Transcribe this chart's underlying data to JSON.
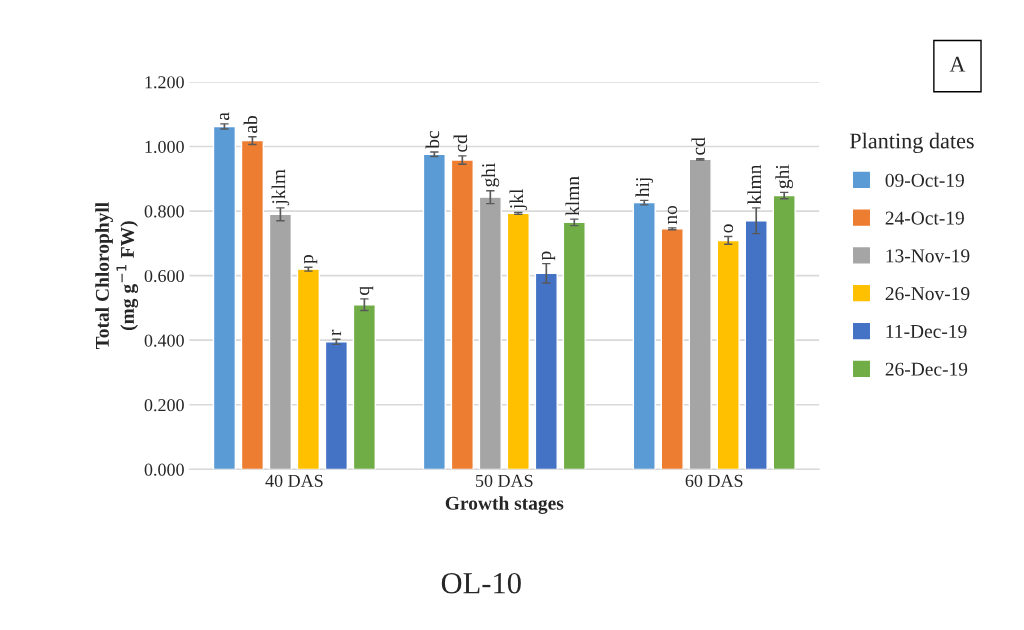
{
  "chart_data": {
    "type": "bar",
    "xlabel": "Growth stages",
    "ylabel": "Total Chlorophyll\n(mg g$^{−1}$ FW)",
    "legend_title": "Planting dates",
    "categories": [
      "40 DAS",
      "50 DAS",
      "60 DAS"
    ],
    "series": [
      {
        "name": "09-Oct-19",
        "color": "#5b9bd5",
        "values": [
          1.062,
          0.976,
          0.826
        ],
        "errors": [
          0.008,
          0.007,
          0.007
        ],
        "value_labels": [
          "a",
          "bc",
          "hij"
        ]
      },
      {
        "name": "24-Oct-19",
        "color": "#ed7d31",
        "values": [
          1.018,
          0.958,
          0.745
        ],
        "errors": [
          0.012,
          0.013,
          0.003
        ],
        "value_labels": [
          "ab",
          "cd",
          "no"
        ]
      },
      {
        "name": "13-Nov-19",
        "color": "#a5a5a5",
        "values": [
          0.79,
          0.843,
          0.96
        ],
        "errors": [
          0.02,
          0.02,
          0.002
        ],
        "value_labels": [
          "jklm",
          "ghi",
          "cd"
        ]
      },
      {
        "name": "26-Nov-19",
        "color": "#ffc000",
        "values": [
          0.62,
          0.793,
          0.709
        ],
        "errors": [
          0.006,
          0.003,
          0.012
        ],
        "value_labels": [
          "p",
          "jkl",
          "o"
        ]
      },
      {
        "name": "11-Dec-19",
        "color": "#4472c4",
        "values": [
          0.395,
          0.607,
          0.77
        ],
        "errors": [
          0.008,
          0.03,
          0.04
        ],
        "value_labels": [
          "r",
          "p",
          "klmn"
        ]
      },
      {
        "name": "26-Dec-19",
        "color": "#70ad47",
        "values": [
          0.51,
          0.765,
          0.848
        ],
        "errors": [
          0.018,
          0.01,
          0.01
        ],
        "value_labels": [
          "q",
          "klmn",
          "ghi"
        ]
      }
    ],
    "ylim": [
      0,
      1.2
    ],
    "yticks": [
      {
        "value": 0,
        "label": "0.000"
      },
      {
        "value": 0.2,
        "label": "0.200"
      },
      {
        "value": 0.4,
        "label": "0.400"
      },
      {
        "value": 0.6,
        "label": "0.600"
      },
      {
        "value": 0.8,
        "label": "0.800"
      },
      {
        "value": 1.0,
        "label": "1.000"
      },
      {
        "value": 1.2,
        "label": "1.200"
      }
    ],
    "grid": "y",
    "legend": "right",
    "annotations": [
      "A",
      "OL-10"
    ]
  }
}
